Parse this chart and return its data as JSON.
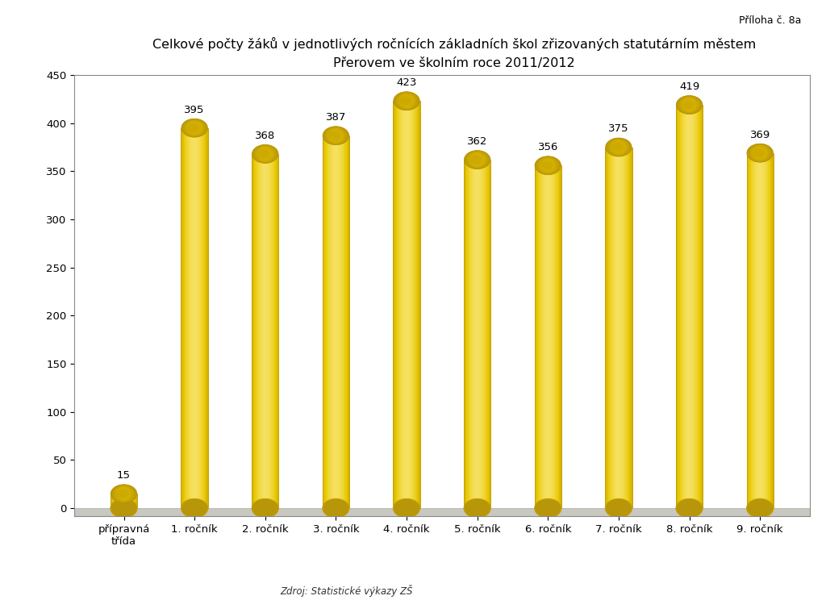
{
  "title_line1": "Celkové počty žáků v jednotlivých ročnících základních škol zřizovaných statutárním městem",
  "title_line2": "Přerovem ve školním roce 2011/2012",
  "subtitle_right": "Příloha č. 8a",
  "categories": [
    "přípravná\ntřída",
    "1. ročník",
    "2. ročník",
    "3. ročník",
    "4. ročník",
    "5. ročník",
    "6. ročník",
    "7. ročník",
    "8. ročník",
    "9. ročník"
  ],
  "values": [
    15,
    395,
    368,
    387,
    423,
    362,
    356,
    375,
    419,
    369
  ],
  "ylim": [
    0,
    450
  ],
  "yticks": [
    0,
    50,
    100,
    150,
    200,
    250,
    300,
    350,
    400,
    450
  ],
  "bar_color_main": "#E8C800",
  "bar_color_dark": "#B8960A",
  "bar_color_light": "#F5E060",
  "bar_color_edge": "#C8A200",
  "background_color": "#ffffff",
  "plot_bg_color": "#ffffff",
  "floor_color_top": "#d0cfc8",
  "floor_color_bottom": "#e8e7e0",
  "source_text": "Zdroj: Statistické výkazy ZŠ",
  "title_fontsize": 11.5,
  "tick_fontsize": 9.5,
  "value_fontsize": 9.5,
  "bar_width": 0.38
}
